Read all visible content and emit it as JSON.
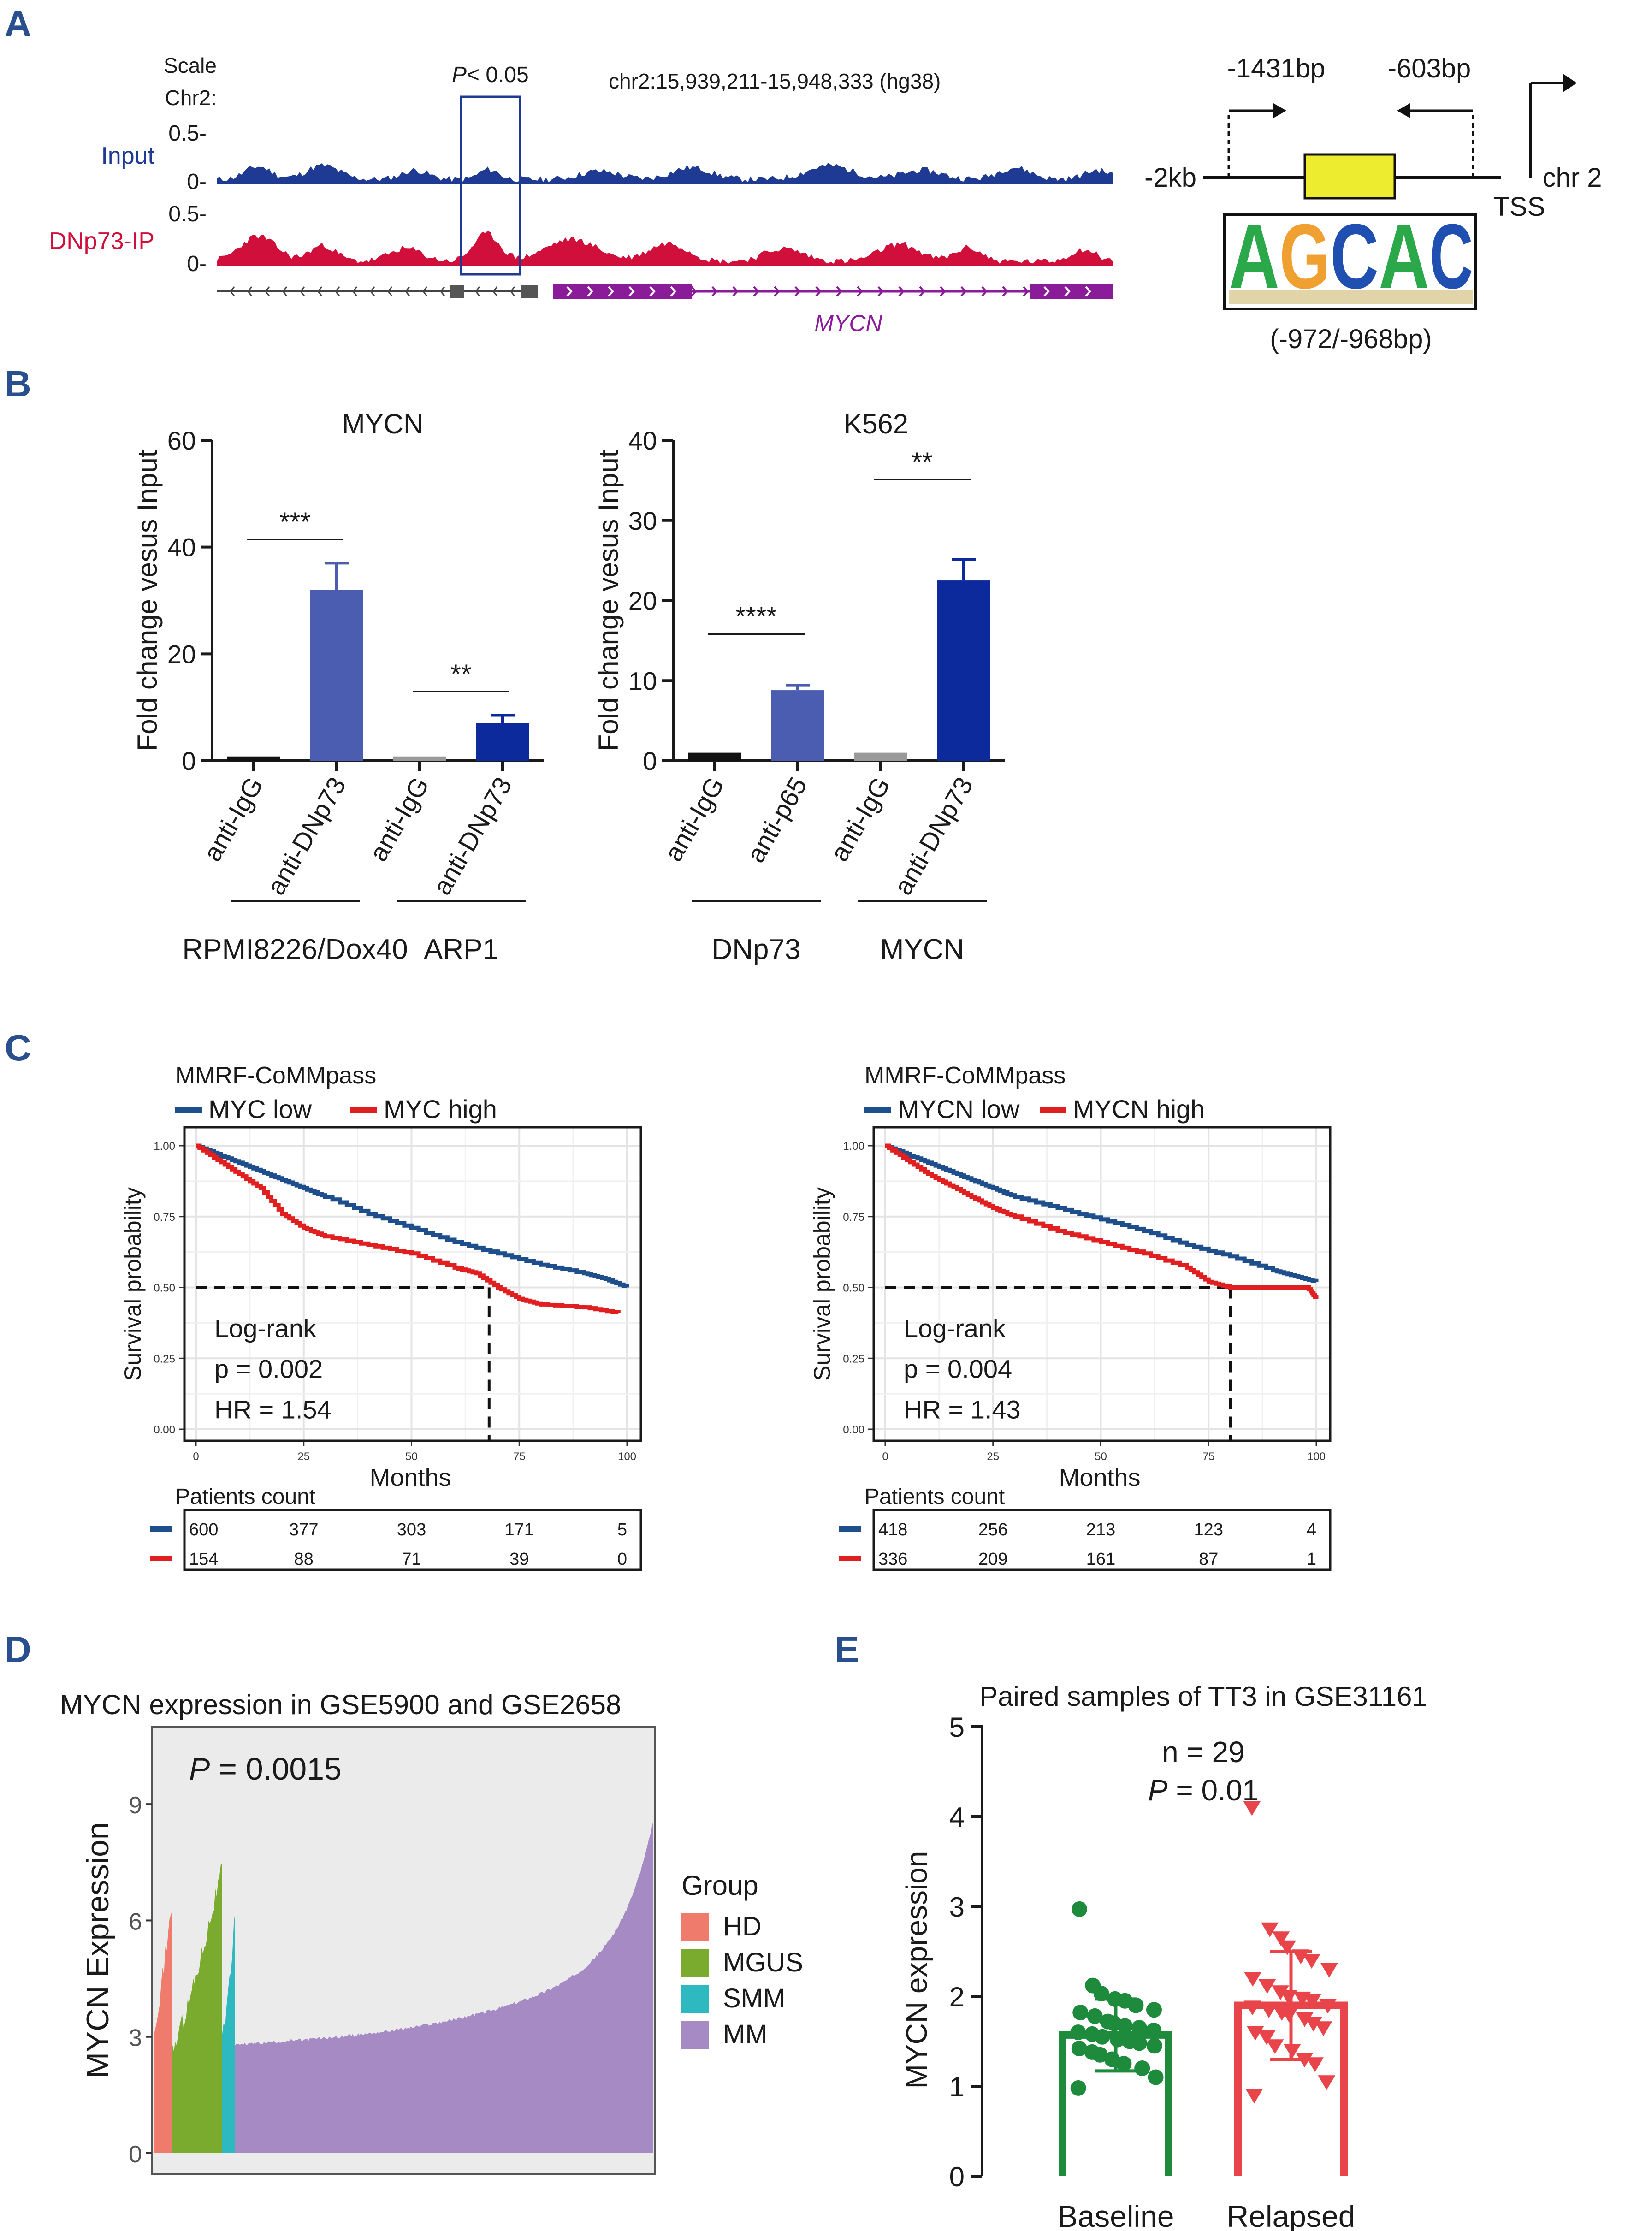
{
  "panels": {
    "a": "A",
    "b": "B",
    "c": "C",
    "d": "D",
    "e": "E"
  },
  "colors": {
    "navy": "#1f3a93",
    "red": "#d0103a",
    "purple": "#8b1c99",
    "yellow": "#eeec2e",
    "blue_bar": "#4a5db0",
    "dark_blue_bar": "#0d2a9c",
    "km_blue": "#1f4e8c",
    "km_red": "#e02020",
    "green": "#1e8a3c",
    "e_red": "#e8444a",
    "hd": "#ee7b6c",
    "mgus": "#7bab2e",
    "smm": "#2eb8c0",
    "mm": "#a58ac3"
  },
  "panel_a": {
    "scale_label": "Scale",
    "chr_label": "Chr2:",
    "p_label_italic": "P",
    "p_label_rest": "< 0.05",
    "region": "chr2:15,939,211-15,948,333 (hg38)",
    "track1": "Input",
    "track2": "DNp73-IP",
    "y_ticks": [
      "0.5-",
      "0-"
    ],
    "gene": "MYCN",
    "schematic": {
      "left_end": "-2kb",
      "right_end": "chr 2",
      "tss": "TSS",
      "primer_left": "-1431bp",
      "primer_right": "-603bp",
      "motif": [
        "A",
        "G",
        "C",
        "A",
        "C"
      ],
      "motif_pos": "(-972/-968bp)"
    }
  },
  "chart_data": [
    {
      "id": "B-left",
      "type": "bar",
      "title": "MYCN",
      "ylabel": "Fold change vesus Input",
      "ylim": [
        0,
        60
      ],
      "yticks": [
        "0",
        "20",
        "40",
        "60"
      ],
      "categories": [
        "anti-IgG",
        "anti-DNp73",
        "anti-IgG",
        "anti-DNp73"
      ],
      "values": [
        0.8,
        32,
        0.8,
        7
      ],
      "errors": [
        0,
        5,
        0,
        1.5
      ],
      "groups": [
        "RPMI8226/Dox40",
        "ARP1"
      ],
      "significance": [
        "***",
        "**"
      ]
    },
    {
      "id": "B-right",
      "type": "bar",
      "title": "K562",
      "ylabel": "Fold change vesus Input",
      "ylim": [
        0,
        40
      ],
      "yticks": [
        "0",
        "10",
        "20",
        "30",
        "40"
      ],
      "categories": [
        "anti-IgG",
        "anti-p65",
        "anti-IgG",
        "anti-DNp73"
      ],
      "values": [
        1,
        8.8,
        1,
        22.5
      ],
      "errors": [
        0,
        0.6,
        0,
        2.6
      ],
      "groups": [
        "DNp73",
        "MYCN"
      ],
      "significance": [
        "****",
        "**"
      ]
    },
    {
      "id": "C-left",
      "type": "line",
      "title": "MMRF-CoMMpass",
      "legend": [
        "MYC low",
        "MYC high"
      ],
      "xlabel": "Months",
      "ylabel": "Survival probability",
      "xlim": [
        0,
        100
      ],
      "ylim": [
        0,
        1
      ],
      "xticks": [
        "0",
        "25",
        "50",
        "75",
        "100"
      ],
      "yticks": [
        "0.00",
        "0.25",
        "0.50",
        "0.75",
        "1.00"
      ],
      "series": [
        {
          "name": "MYC low",
          "x": [
            0,
            5,
            10,
            15,
            20,
            25,
            30,
            40,
            50,
            60,
            70,
            80,
            90,
            95,
            100
          ],
          "y": [
            1,
            0.97,
            0.94,
            0.91,
            0.88,
            0.85,
            0.82,
            0.76,
            0.71,
            0.66,
            0.62,
            0.58,
            0.55,
            0.53,
            0.5
          ]
        },
        {
          "name": "MYC high",
          "x": [
            0,
            5,
            10,
            15,
            20,
            25,
            30,
            40,
            50,
            60,
            65,
            70,
            75,
            80,
            90,
            98
          ],
          "y": [
            1,
            0.95,
            0.9,
            0.85,
            0.76,
            0.71,
            0.68,
            0.65,
            0.62,
            0.57,
            0.55,
            0.5,
            0.46,
            0.44,
            0.43,
            0.41
          ]
        }
      ],
      "stats": [
        "Log-rank",
        "p = 0.002",
        "HR = 1.54"
      ],
      "median_x": 68,
      "risk_title": "Patients count",
      "risk": [
        [
          "600",
          "377",
          "303",
          "171",
          "5"
        ],
        [
          "154",
          "88",
          "71",
          "39",
          "0"
        ]
      ]
    },
    {
      "id": "C-right",
      "type": "line",
      "title": "MMRF-CoMMpass",
      "legend": [
        "MYCN low",
        "MYCN high"
      ],
      "xlabel": "Months",
      "ylabel": "Survival probability",
      "xlim": [
        0,
        100
      ],
      "ylim": [
        0,
        1
      ],
      "xticks": [
        "0",
        "25",
        "50",
        "75",
        "100"
      ],
      "yticks": [
        "0.00",
        "0.25",
        "0.50",
        "0.75",
        "1.00"
      ],
      "series": [
        {
          "name": "MYCN low",
          "x": [
            0,
            5,
            10,
            15,
            20,
            25,
            30,
            40,
            50,
            60,
            70,
            80,
            90,
            95,
            100
          ],
          "y": [
            1,
            0.97,
            0.94,
            0.91,
            0.88,
            0.85,
            0.82,
            0.78,
            0.74,
            0.7,
            0.65,
            0.61,
            0.56,
            0.54,
            0.52
          ]
        },
        {
          "name": "MYCN high",
          "x": [
            0,
            5,
            10,
            15,
            20,
            25,
            30,
            40,
            50,
            60,
            70,
            75,
            80,
            90,
            98,
            100
          ],
          "y": [
            1,
            0.95,
            0.9,
            0.86,
            0.82,
            0.78,
            0.75,
            0.7,
            0.66,
            0.62,
            0.57,
            0.52,
            0.5,
            0.5,
            0.5,
            0.46
          ]
        }
      ],
      "stats": [
        "Log-rank",
        "p = 0.004",
        "HR = 1.43"
      ],
      "median_x": 80,
      "risk_title": "Patients count",
      "risk": [
        [
          "418",
          "256",
          "213",
          "123",
          "4"
        ],
        [
          "336",
          "209",
          "161",
          "87",
          "1"
        ]
      ]
    },
    {
      "id": "D",
      "type": "area",
      "title": "MYCN expression in GSE5900 and GSE2658",
      "ylabel": "MYCN Expression",
      "ylim": [
        0,
        11
      ],
      "yticks": [
        "0",
        "3",
        "6",
        "9"
      ],
      "stat_italic": "P",
      "stat_rest": " = 0.0015",
      "legend_title": "Group",
      "groups": [
        {
          "name": "HD",
          "n": 22,
          "min": 3.3,
          "max": 6.5
        },
        {
          "name": "MGUS",
          "n": 44,
          "min": 2.7,
          "max": 7.4
        },
        {
          "name": "SMM",
          "n": 12,
          "min": 2.9,
          "max": 6.1
        },
        {
          "name": "MM",
          "n": 559,
          "min": 2.8,
          "max": 8.5
        }
      ]
    },
    {
      "id": "E",
      "type": "bar",
      "title": "Paired samples of TT3 in GSE31161",
      "ylabel": "MYCN expression",
      "ylim": [
        0,
        5
      ],
      "yticks": [
        "0",
        "1",
        "2",
        "3",
        "4",
        "5"
      ],
      "categories": [
        "Baseline",
        "Relapsed"
      ],
      "means": [
        1.57,
        1.9
      ],
      "sd": [
        0.4,
        0.6
      ],
      "annot": [
        "n = 29"
      ],
      "p_italic": "P",
      "p_rest": " = 0.01",
      "points": {
        "Baseline": [
          2.97,
          2.12,
          2.03,
          1.97,
          1.95,
          1.9,
          1.85,
          1.82,
          1.78,
          1.72,
          1.7,
          1.67,
          1.65,
          1.62,
          1.6,
          1.58,
          1.55,
          1.52,
          1.5,
          1.48,
          1.45,
          1.42,
          1.38,
          1.35,
          1.3,
          1.25,
          1.2,
          1.1,
          0.98
        ],
        "Relapsed": [
          4.1,
          2.75,
          2.65,
          2.55,
          2.45,
          2.4,
          2.3,
          2.2,
          2.12,
          2.05,
          2.0,
          1.98,
          1.95,
          1.9,
          1.88,
          1.85,
          1.82,
          1.8,
          1.75,
          1.7,
          1.65,
          1.6,
          1.55,
          1.45,
          1.4,
          1.3,
          1.25,
          1.05,
          0.9
        ]
      }
    }
  ]
}
